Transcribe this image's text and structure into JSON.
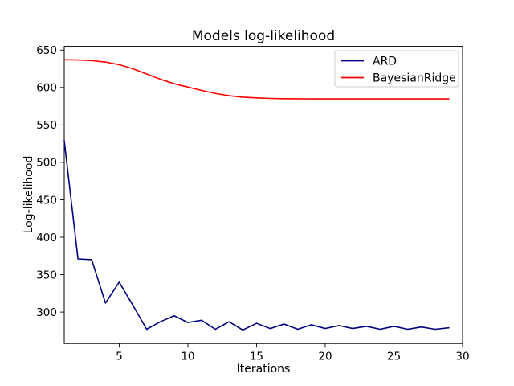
{
  "colors": {
    "background": "#ffffff",
    "axis": "#000000",
    "text": "#000000",
    "legend_border": "#cccccc",
    "ard_line": "#000080",
    "bayesianridge_line": "#ff0000"
  },
  "legend": {
    "entries": [
      "ARD",
      "BayesianRidge"
    ]
  },
  "chart_data": {
    "type": "line",
    "title": "Models log-likelihood",
    "xlabel": "Iterations",
    "ylabel": "Log-likelihood",
    "xlim": [
      1,
      30
    ],
    "ylim": [
      258,
      655
    ],
    "xticks": [
      5,
      10,
      15,
      20,
      25,
      30
    ],
    "yticks": [
      300,
      350,
      400,
      450,
      500,
      550,
      600,
      650
    ],
    "grid": false,
    "legend_position": "upper right",
    "x": [
      1,
      2,
      3,
      4,
      5,
      6,
      7,
      8,
      9,
      10,
      11,
      12,
      13,
      14,
      15,
      16,
      17,
      18,
      19,
      20,
      21,
      22,
      23,
      24,
      25,
      26,
      27,
      28,
      29
    ],
    "series": [
      {
        "name": "ARD",
        "color": "#000080",
        "values": [
          529,
          371,
          370,
          312,
          340,
          309,
          277,
          287,
          295,
          286,
          289,
          277,
          287,
          276,
          285,
          278,
          284,
          277,
          283,
          278,
          282,
          278,
          281,
          277,
          281,
          277,
          280,
          277,
          279
        ]
      },
      {
        "name": "BayesianRidge",
        "color": "#ff0000",
        "values": [
          637,
          636.8,
          636,
          634,
          630.5,
          625,
          618,
          611,
          605,
          600.5,
          596,
          592,
          589,
          587,
          586,
          585.3,
          585,
          584.8,
          584.7,
          584.7,
          584.7,
          584.7,
          584.7,
          584.7,
          584.7,
          584.7,
          584.7,
          584.7,
          584.7
        ]
      }
    ]
  }
}
